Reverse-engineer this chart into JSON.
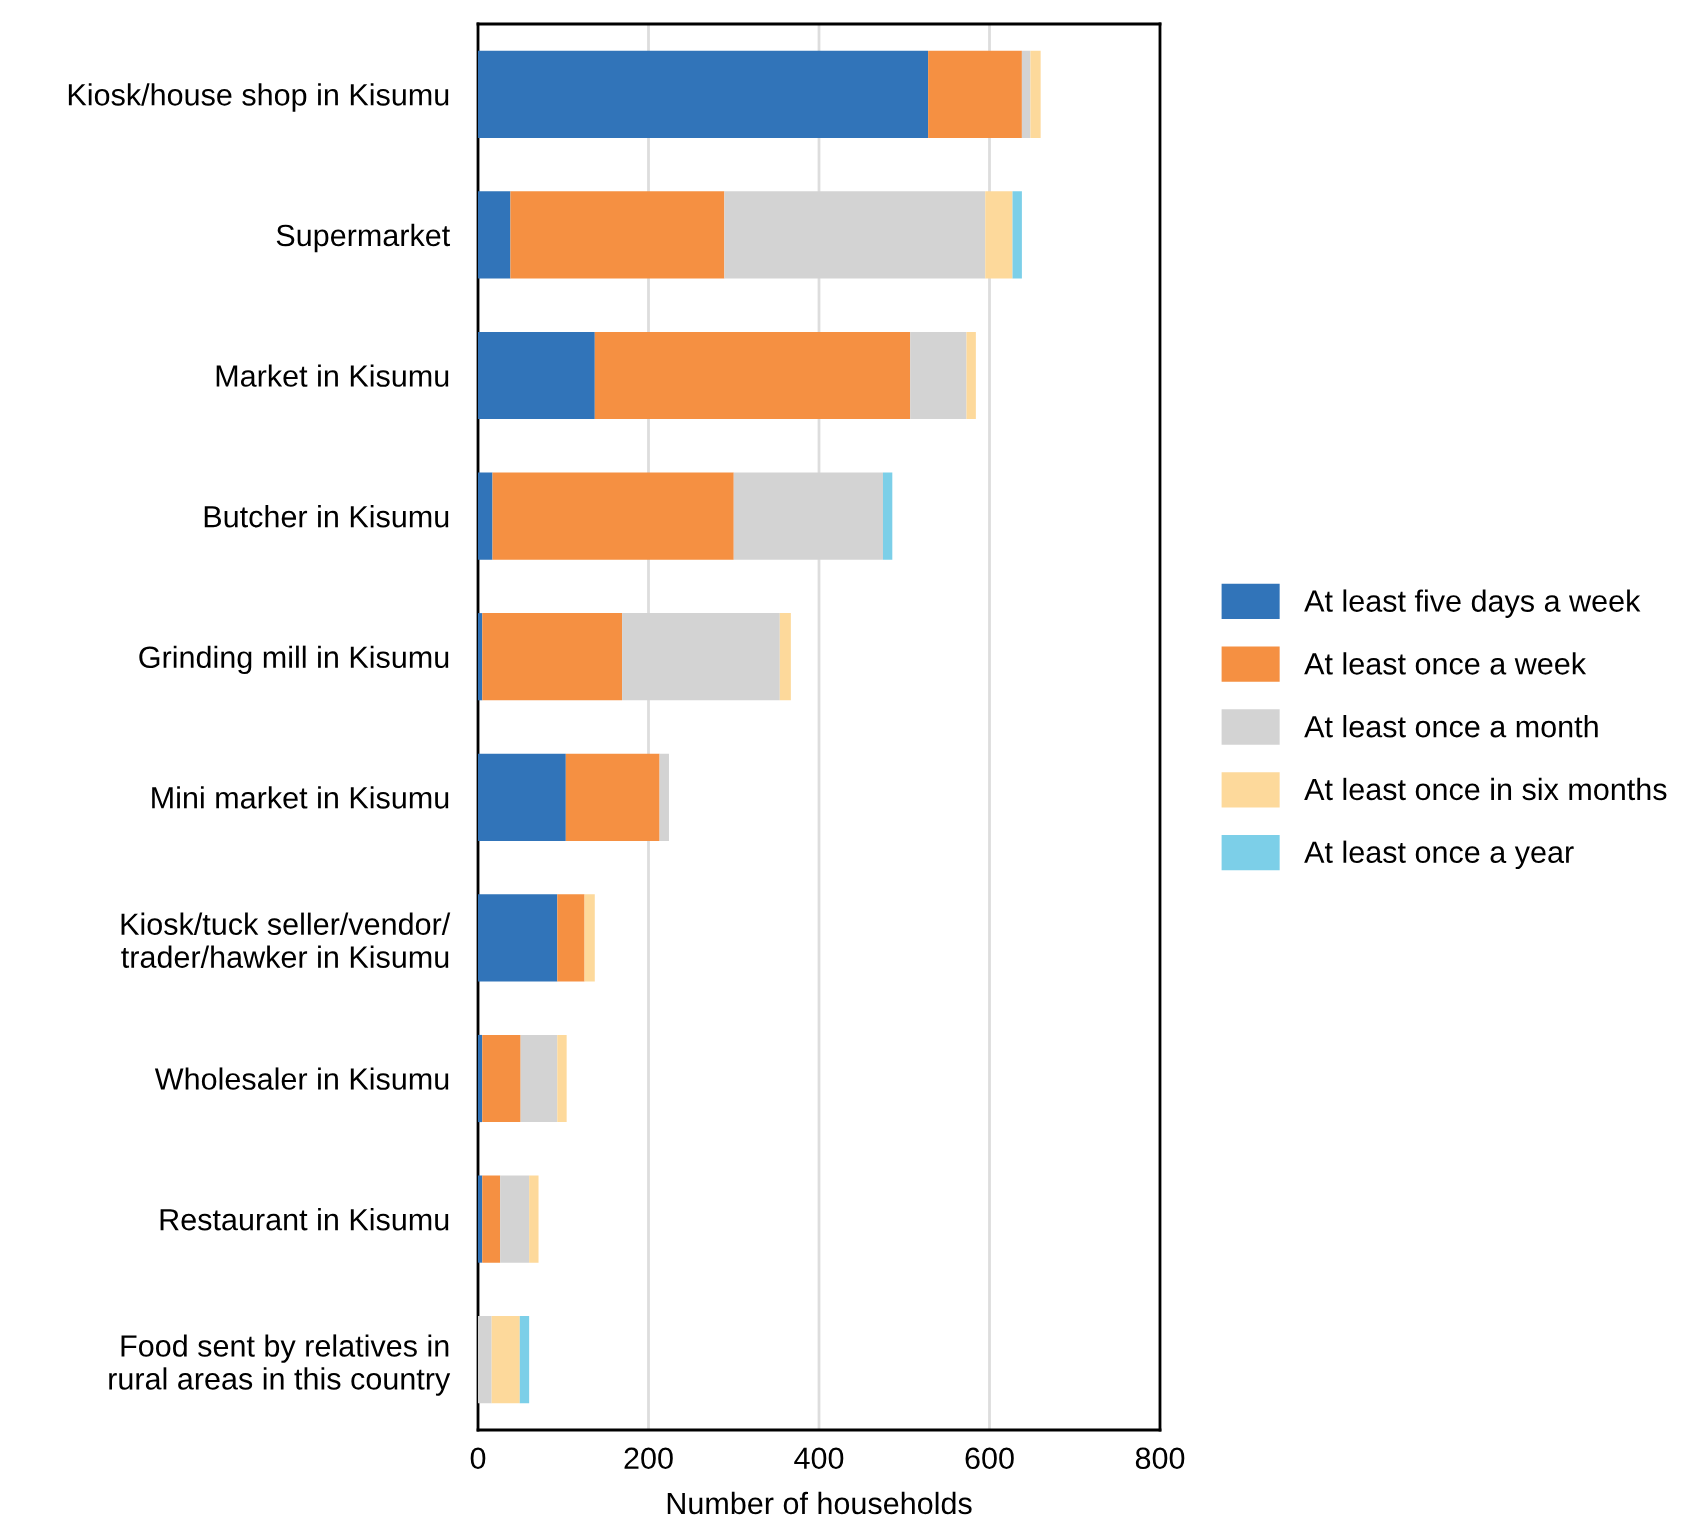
{
  "chart_data": {
    "type": "bar",
    "orientation": "horizontal",
    "stacked": true,
    "categories": [
      "Kiosk/house shop in Kisumu",
      "Supermarket",
      "Market in Kisumu",
      "Butcher in Kisumu",
      "Grinding mill in Kisumu",
      "Mini market in Kisumu",
      "Kiosk/tuck seller/vendor/\ntrader/hawker in Kisumu",
      "Wholesaler in Kisumu",
      "Restaurant in Kisumu",
      "Food sent by relatives in\nrural areas in this country"
    ],
    "series": [
      {
        "name": "At least five days a week",
        "color": "#3174b9",
        "values": [
          528,
          38,
          137,
          17,
          5,
          103,
          93,
          5,
          5,
          0
        ]
      },
      {
        "name": "At least once a week",
        "color": "#f59042",
        "values": [
          110,
          251,
          370,
          283,
          164,
          110,
          32,
          45,
          21,
          0
        ]
      },
      {
        "name": "At least once a month",
        "color": "#d3d3d3",
        "values": [
          10,
          306,
          66,
          175,
          185,
          11,
          0,
          43,
          34,
          16
        ]
      },
      {
        "name": "At least once in six months",
        "color": "#fdd99b",
        "values": [
          12,
          32,
          11,
          0,
          13,
          0,
          12,
          11,
          11,
          33
        ]
      },
      {
        "name": "At least once a year",
        "color": "#7ccfe8",
        "values": [
          0,
          11,
          0,
          11,
          0,
          0,
          0,
          0,
          0,
          11
        ]
      }
    ],
    "xlabel": "Number of households",
    "xlim": [
      0,
      800
    ],
    "xticks": [
      0,
      200,
      400,
      600,
      800
    ],
    "grid": "x",
    "legend": "right"
  }
}
